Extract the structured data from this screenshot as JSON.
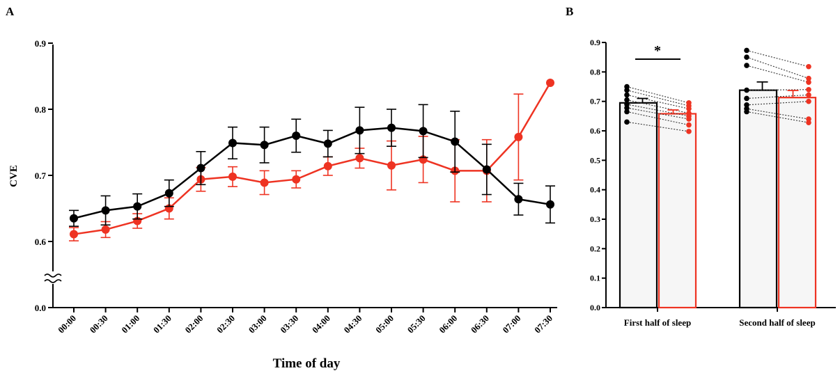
{
  "colors": {
    "black_series": "#000000",
    "red_series": "#ee3322",
    "bar_fill": "#f6f6f6"
  },
  "chart_data": [
    {
      "panel": "A",
      "type": "line",
      "xlabel": "Time of day",
      "ylabel": "CVE",
      "ylim": [
        0.0,
        0.9
      ],
      "y_axis_break": true,
      "y_ticks": [
        "0.0",
        "0.6",
        "0.7",
        "0.8",
        "0.9"
      ],
      "categories": [
        "00:00",
        "00:30",
        "01:00",
        "01:30",
        "02:00",
        "02:30",
        "03:00",
        "03:30",
        "04:00",
        "04:30",
        "05:00",
        "05:30",
        "06:00",
        "06:30",
        "07:00",
        "07:30"
      ],
      "series": [
        {
          "color": "#000000",
          "values": [
            0.635,
            0.647,
            0.653,
            0.673,
            0.711,
            0.749,
            0.746,
            0.76,
            0.748,
            0.768,
            0.772,
            0.767,
            0.751,
            0.709,
            0.664,
            0.656
          ],
          "errors": [
            0.012,
            0.022,
            0.019,
            0.02,
            0.025,
            0.024,
            0.027,
            0.025,
            0.02,
            0.035,
            0.028,
            0.04,
            0.046,
            0.038,
            0.024,
            0.028
          ]
        },
        {
          "color": "#ee3322",
          "values": [
            0.611,
            0.618,
            0.631,
            0.65,
            0.694,
            0.698,
            0.689,
            0.694,
            0.714,
            0.726,
            0.715,
            0.724,
            0.707,
            0.707,
            0.758,
            0.84
          ],
          "errors": [
            0.01,
            0.012,
            0.011,
            0.016,
            0.018,
            0.015,
            0.018,
            0.013,
            0.014,
            0.015,
            0.037,
            0.035,
            0.047,
            0.047,
            0.065,
            0.0
          ]
        }
      ]
    },
    {
      "panel": "B",
      "type": "bar",
      "ylim": [
        0.0,
        0.9
      ],
      "y_ticks": [
        "0.0",
        "0.1",
        "0.2",
        "0.3",
        "0.4",
        "0.5",
        "0.6",
        "0.7",
        "0.8",
        "0.9"
      ],
      "categories": [
        "First half of sleep",
        "Second half of sleep"
      ],
      "significance": "*",
      "groups": [
        {
          "black_mean": 0.695,
          "black_err": 0.015,
          "red_mean": 0.658,
          "red_err": 0.013,
          "black_points": [
            0.75,
            0.738,
            0.722,
            0.705,
            0.69,
            0.678,
            0.665,
            0.63
          ],
          "red_points": [
            0.695,
            0.685,
            0.675,
            0.66,
            0.65,
            0.64,
            0.62,
            0.598
          ]
        },
        {
          "black_mean": 0.738,
          "black_err": 0.028,
          "red_mean": 0.713,
          "red_err": 0.024,
          "black_points": [
            0.873,
            0.85,
            0.822,
            0.738,
            0.71,
            0.688,
            0.675,
            0.665
          ],
          "red_points": [
            0.818,
            0.778,
            0.765,
            0.74,
            0.722,
            0.7,
            0.64,
            0.628
          ]
        }
      ]
    }
  ]
}
